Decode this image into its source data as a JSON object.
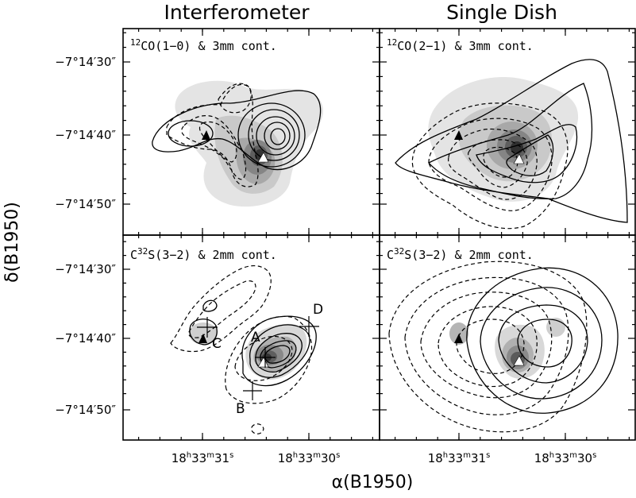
{
  "figure": {
    "column_titles": [
      "Interferometer",
      "Single Dish"
    ],
    "ylabel": "δ(B1950)",
    "xlabel": "α(B1950)"
  },
  "panels": [
    {
      "name": "interferometer-co10",
      "iso": "12",
      "mol": "CO(1−0)",
      "rest": " & 3mm cont."
    },
    {
      "name": "singledish-co21",
      "iso": "12",
      "mol": "CO(2−1)",
      "rest": " & 3mm cont."
    },
    {
      "name": "interferometer-cs32",
      "pre": "C",
      "iso": "32",
      "mol": "S(3−2)",
      "rest": " & 2mm cont."
    },
    {
      "name": "singledish-cs32",
      "pre": "C",
      "iso": "32",
      "mol": "S(3−2)",
      "rest": " & 2mm cont."
    }
  ],
  "chart_data": {
    "type": "contour",
    "layout": "2x2 panels",
    "y_ticks": [
      {
        "label": "−7°14′30″",
        "value": "-7:14:30"
      },
      {
        "label": "−7°14′40″",
        "value": "-7:14:40"
      },
      {
        "label": "−7°14′50″",
        "value": "-7:14:50"
      }
    ],
    "x_ticks": [
      {
        "h": "18",
        "m": "33",
        "s": "31",
        "value": "18:33:31"
      },
      {
        "h": "18",
        "m": "33",
        "s": "30",
        "value": "18:33:30"
      }
    ],
    "markers": [
      "A",
      "B",
      "C",
      "D"
    ],
    "encoding": {
      "continuum": "grey shaded",
      "blueshifted_or_first_component": "dashed contours",
      "redshifted_or_second_component": "solid contours"
    }
  }
}
